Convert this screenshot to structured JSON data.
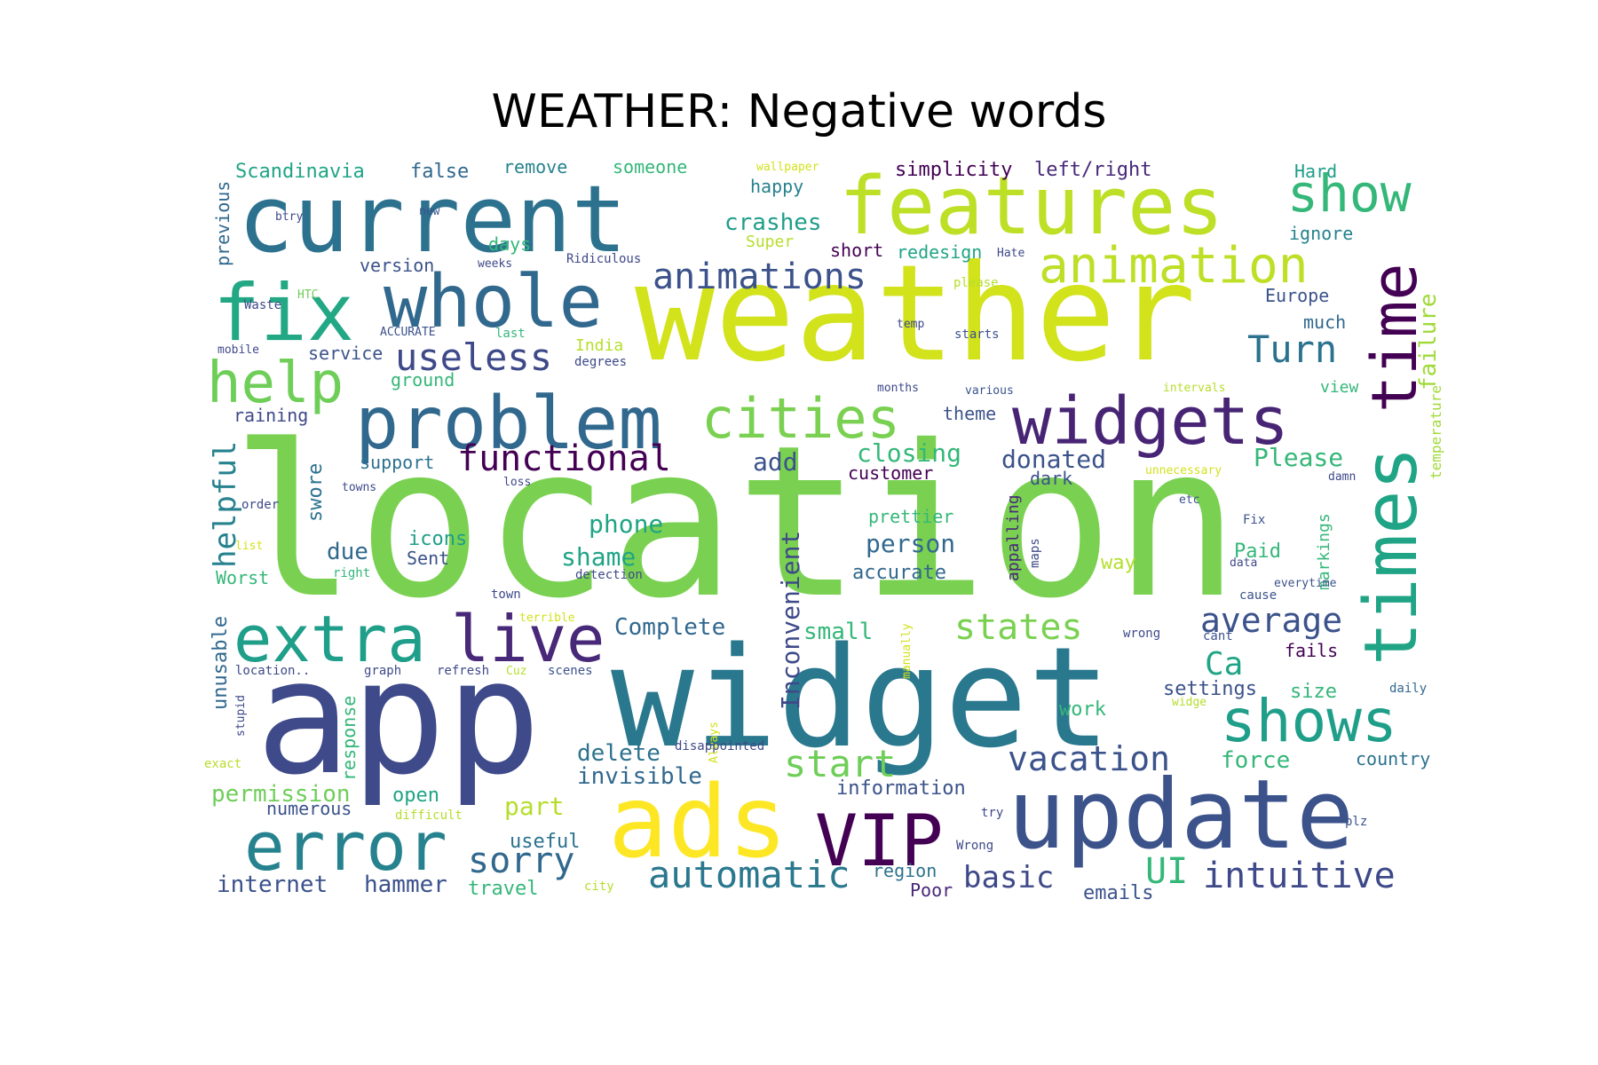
{
  "title": "WEATHER: Negative words",
  "palette": {
    "dark_purple": "#440154",
    "indigo": "#3e4989",
    "blue": "#31688e",
    "teal": "#26828e",
    "green_teal": "#1f9e89",
    "green": "#35b779",
    "light_green": "#6ece58",
    "lime": "#b5de2b",
    "yellow": "#fde725"
  },
  "words": [
    {
      "text": "location",
      "color": "#7ad151"
    },
    {
      "text": "weather",
      "color": "#d2e21b"
    },
    {
      "text": "app",
      "color": "#3e4a89"
    },
    {
      "text": "widget",
      "color": "#2a788e"
    },
    {
      "text": "current",
      "color": "#2c728e"
    },
    {
      "text": "features",
      "color": "#bddf26"
    },
    {
      "text": "update",
      "color": "#3b528b"
    },
    {
      "text": "ads",
      "color": "#fde725"
    },
    {
      "text": "problem",
      "color": "#31688e"
    },
    {
      "text": "times",
      "color": "#20a486"
    },
    {
      "text": "time",
      "color": "#440154"
    },
    {
      "text": "widgets",
      "color": "#482475"
    },
    {
      "text": "error",
      "color": "#26828e"
    },
    {
      "text": "extra",
      "color": "#1f9e89"
    },
    {
      "text": "live",
      "color": "#482878"
    },
    {
      "text": "VIP",
      "color": "#440154"
    },
    {
      "text": "whole",
      "color": "#31688e"
    },
    {
      "text": "fix",
      "color": "#22a884"
    },
    {
      "text": "cities",
      "color": "#7ad151"
    },
    {
      "text": "help",
      "color": "#6ece58"
    },
    {
      "text": "show",
      "color": "#35b779"
    },
    {
      "text": "animation",
      "color": "#bddf26"
    },
    {
      "text": "shows",
      "color": "#1f9e89"
    },
    {
      "text": "animations",
      "color": "#3b528b"
    },
    {
      "text": "useless",
      "color": "#3e4989"
    },
    {
      "text": "functional",
      "color": "#440154"
    },
    {
      "text": "automatic",
      "color": "#2a788e"
    },
    {
      "text": "vacation",
      "color": "#3b528b"
    },
    {
      "text": "intuitive",
      "color": "#3e4989"
    },
    {
      "text": "start",
      "color": "#6ece58"
    },
    {
      "text": "states",
      "color": "#7ad151"
    },
    {
      "text": "sorry",
      "color": "#31688e"
    },
    {
      "text": "average",
      "color": "#3b528b"
    },
    {
      "text": "Turn",
      "color": "#2c728e"
    },
    {
      "text": "basic",
      "color": "#3e4989"
    },
    {
      "text": "UI",
      "color": "#35b779"
    },
    {
      "text": "helpful",
      "color": "#26828e"
    },
    {
      "text": "Inconvenient",
      "color": "#3e4989"
    },
    {
      "text": "failure",
      "color": "#a0da39"
    },
    {
      "text": "temperature",
      "color": "#a0da39"
    },
    {
      "text": "Scandinavia",
      "color": "#20a486"
    },
    {
      "text": "false",
      "color": "#31688e"
    },
    {
      "text": "remove",
      "color": "#26828e"
    },
    {
      "text": "someone",
      "color": "#35b779"
    },
    {
      "text": "wallpaper",
      "color": "#d2e21b"
    },
    {
      "text": "simplicity",
      "color": "#440154"
    },
    {
      "text": "left/right",
      "color": "#482878"
    },
    {
      "text": "Hard",
      "color": "#1f9e89"
    },
    {
      "text": "happy",
      "color": "#26828e"
    },
    {
      "text": "crashes",
      "color": "#1f9e89"
    },
    {
      "text": "Super",
      "color": "#b5de2b"
    },
    {
      "text": "days",
      "color": "#35b779"
    },
    {
      "text": "short",
      "color": "#440154"
    },
    {
      "text": "redesign",
      "color": "#20a486"
    },
    {
      "text": "Hate",
      "color": "#3e4989"
    },
    {
      "text": "ignore",
      "color": "#26828e"
    },
    {
      "text": "previous",
      "color": "#31688e"
    },
    {
      "text": "btry",
      "color": "#3e4989"
    },
    {
      "text": "new",
      "color": "#3b528b"
    },
    {
      "text": "version",
      "color": "#3b528b"
    },
    {
      "text": "weeks",
      "color": "#3e4989"
    },
    {
      "text": "Ridiculous",
      "color": "#3e4989"
    },
    {
      "text": "HTC",
      "color": "#6ece58"
    },
    {
      "text": "Waste",
      "color": "#3e4989"
    },
    {
      "text": "ACCURATE",
      "color": "#3b528b"
    },
    {
      "text": "last",
      "color": "#35b779"
    },
    {
      "text": "India",
      "color": "#b5de2b"
    },
    {
      "text": "mobile",
      "color": "#3e4989"
    },
    {
      "text": "service",
      "color": "#3b528b"
    },
    {
      "text": "degrees",
      "color": "#3e4989"
    },
    {
      "text": "ground",
      "color": "#35b779"
    },
    {
      "text": "please",
      "color": "#b5de2b"
    },
    {
      "text": "temp",
      "color": "#3e4989"
    },
    {
      "text": "starts",
      "color": "#3b528b"
    },
    {
      "text": "Europe",
      "color": "#3b528b"
    },
    {
      "text": "much",
      "color": "#31688e"
    },
    {
      "text": "months",
      "color": "#3e4989"
    },
    {
      "text": "various",
      "color": "#3b528b"
    },
    {
      "text": "intervals",
      "color": "#b5de2b"
    },
    {
      "text": "view",
      "color": "#35b779"
    },
    {
      "text": "raining",
      "color": "#3e4989"
    },
    {
      "text": "theme",
      "color": "#3b528b"
    },
    {
      "text": "closing",
      "color": "#35b779"
    },
    {
      "text": "donated",
      "color": "#3b528b"
    },
    {
      "text": "Please",
      "color": "#35b779"
    },
    {
      "text": "swore",
      "color": "#2c728e"
    },
    {
      "text": "support",
      "color": "#2c728e"
    },
    {
      "text": "add",
      "color": "#3b528b"
    },
    {
      "text": "customer",
      "color": "#440154"
    },
    {
      "text": "dark",
      "color": "#3b528b"
    },
    {
      "text": "unnecessary",
      "color": "#d2e21b"
    },
    {
      "text": "damn",
      "color": "#3e4989"
    },
    {
      "text": "towns",
      "color": "#3e4989"
    },
    {
      "text": "loss",
      "color": "#3e4989"
    },
    {
      "text": "order",
      "color": "#3e4989"
    },
    {
      "text": "etc",
      "color": "#3b528b"
    },
    {
      "text": "markings",
      "color": "#35b779"
    },
    {
      "text": "prettier",
      "color": "#35b779"
    },
    {
      "text": "Fix",
      "color": "#3b528b"
    },
    {
      "text": "phone",
      "color": "#20a486"
    },
    {
      "text": "person",
      "color": "#31688e"
    },
    {
      "text": "Paid",
      "color": "#35b779"
    },
    {
      "text": "icons",
      "color": "#1f9e89"
    },
    {
      "text": "list",
      "color": "#d2e21b"
    },
    {
      "text": "due",
      "color": "#31688e"
    },
    {
      "text": "shame",
      "color": "#20a486"
    },
    {
      "text": "appalling",
      "color": "#482878"
    },
    {
      "text": "maps",
      "color": "#3e4989"
    },
    {
      "text": "data",
      "color": "#3e4989"
    },
    {
      "text": "Sent",
      "color": "#3b528b"
    },
    {
      "text": "accurate",
      "color": "#31688e"
    },
    {
      "text": "way",
      "color": "#b5de2b"
    },
    {
      "text": "right",
      "color": "#35b779"
    },
    {
      "text": "Worst",
      "color": "#35b779"
    },
    {
      "text": "detection",
      "color": "#3e4989"
    },
    {
      "text": "everytime",
      "color": "#3b528b"
    },
    {
      "text": "town",
      "color": "#3e4989"
    },
    {
      "text": "cause",
      "color": "#3b528b"
    },
    {
      "text": "terrible",
      "color": "#d2e21b"
    },
    {
      "text": "Complete",
      "color": "#31688e"
    },
    {
      "text": "small",
      "color": "#35b779"
    },
    {
      "text": "manually",
      "color": "#d2e21b"
    },
    {
      "text": "wrong",
      "color": "#3e4989"
    },
    {
      "text": "cant",
      "color": "#3b528b"
    },
    {
      "text": "Ca",
      "color": "#20a486"
    },
    {
      "text": "fails",
      "color": "#440154"
    },
    {
      "text": "unusable",
      "color": "#31688e"
    },
    {
      "text": "location..",
      "color": "#3e4989"
    },
    {
      "text": "graph",
      "color": "#3e4989"
    },
    {
      "text": "refresh",
      "color": "#3e4989"
    },
    {
      "text": "Cuz",
      "color": "#b5de2b"
    },
    {
      "text": "scenes",
      "color": "#3b528b"
    },
    {
      "text": "settings",
      "color": "#3b528b"
    },
    {
      "text": "size",
      "color": "#35b779"
    },
    {
      "text": "stupid",
      "color": "#3e4989"
    },
    {
      "text": "work",
      "color": "#35b779"
    },
    {
      "text": "Always",
      "color": "#d2e21b"
    },
    {
      "text": "widge",
      "color": "#b5de2b"
    },
    {
      "text": "daily",
      "color": "#31688e"
    },
    {
      "text": "response",
      "color": "#35b779"
    },
    {
      "text": "exact",
      "color": "#b5de2b"
    },
    {
      "text": "delete",
      "color": "#2c728e"
    },
    {
      "text": "disappointed",
      "color": "#3e4989"
    },
    {
      "text": "invisible",
      "color": "#31688e"
    },
    {
      "text": "force",
      "color": "#35b779"
    },
    {
      "text": "country",
      "color": "#2c728e"
    },
    {
      "text": "permission",
      "color": "#6ece58"
    },
    {
      "text": "open",
      "color": "#20a486"
    },
    {
      "text": "information",
      "color": "#3b528b"
    },
    {
      "text": "numerous",
      "color": "#3b528b"
    },
    {
      "text": "difficult",
      "color": "#b5de2b"
    },
    {
      "text": "part",
      "color": "#b5de2b"
    },
    {
      "text": "try",
      "color": "#3e4989"
    },
    {
      "text": "plz",
      "color": "#3b528b"
    },
    {
      "text": "useful",
      "color": "#2c728e"
    },
    {
      "text": "Wrong",
      "color": "#3e4989"
    },
    {
      "text": "internet",
      "color": "#3b528b"
    },
    {
      "text": "hammer",
      "color": "#3b528b"
    },
    {
      "text": "travel",
      "color": "#35b779"
    },
    {
      "text": "city",
      "color": "#b5de2b"
    },
    {
      "text": "region",
      "color": "#2c728e"
    },
    {
      "text": "Poor",
      "color": "#482878"
    },
    {
      "text": "emails",
      "color": "#3b528b"
    }
  ]
}
